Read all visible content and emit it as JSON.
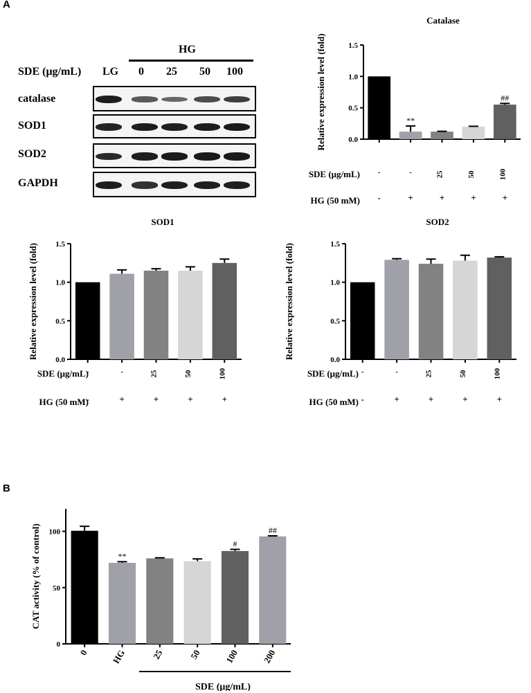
{
  "panels": {
    "a": "A",
    "b": "B"
  },
  "blot": {
    "sde_label": "SDE (μg/mL)",
    "hg_label": "HG",
    "lanes": [
      "LG",
      "0",
      "25",
      "50",
      "100"
    ],
    "rows": [
      {
        "name": "catalase",
        "intensities": [
          0.9,
          0.45,
          0.35,
          0.55,
          0.65
        ]
      },
      {
        "name": "SOD1",
        "intensities": [
          0.85,
          0.9,
          0.88,
          0.9,
          0.92
        ]
      },
      {
        "name": "SOD2",
        "intensities": [
          0.8,
          0.88,
          0.92,
          0.92,
          0.92
        ]
      },
      {
        "name": "GAPDH",
        "intensities": [
          0.9,
          0.75,
          0.88,
          0.88,
          0.88
        ]
      }
    ]
  },
  "chart_data": [
    {
      "type": "bar",
      "title": "Catalase",
      "ylabel": "Relative expression level (fold)",
      "ylim": [
        0,
        1.5
      ],
      "yticks": [
        "0.0",
        "0.5",
        "1.0",
        "1.5"
      ],
      "values": [
        1.0,
        0.12,
        0.12,
        0.2,
        0.55
      ],
      "errors": [
        0,
        0.09,
        0.005,
        0.005,
        0.02
      ],
      "annotations": [
        "",
        "**",
        "",
        "",
        "##"
      ],
      "colors": [
        "#000000",
        "#a0a0a8",
        "#828282",
        "#d6d6d6",
        "#606060"
      ],
      "row_labels": [
        "SDE (μg/mL)",
        "HG (50 mM)"
      ],
      "sde_row": [
        "-",
        "-",
        "25",
        "50",
        "100"
      ],
      "hg_row": [
        "-",
        "+",
        "+",
        "+",
        "+"
      ]
    },
    {
      "type": "bar",
      "title": "SOD1",
      "ylabel": "Relative expression level (fold)",
      "ylim": [
        0,
        1.5
      ],
      "yticks": [
        "0.0",
        "0.5",
        "1.0",
        "1.5"
      ],
      "values": [
        1.0,
        1.11,
        1.15,
        1.15,
        1.25
      ],
      "errors": [
        0,
        0.05,
        0.025,
        0.05,
        0.05
      ],
      "annotations": [
        "",
        "",
        "",
        "",
        ""
      ],
      "colors": [
        "#000000",
        "#a0a0a8",
        "#828282",
        "#d6d6d6",
        "#606060"
      ],
      "row_labels": [
        "SDE (μg/mL)",
        "HG (50 mM)"
      ],
      "sde_row": [
        "-",
        "-",
        "25",
        "50",
        "100"
      ],
      "hg_row": [
        "-",
        "+",
        "+",
        "+",
        "+"
      ]
    },
    {
      "type": "bar",
      "title": "SOD2",
      "ylabel": "Relative expression level (fold)",
      "ylim": [
        0,
        1.5
      ],
      "yticks": [
        "0.0",
        "0.5",
        "1.0",
        "1.5"
      ],
      "values": [
        1.0,
        1.29,
        1.24,
        1.28,
        1.32
      ],
      "errors": [
        0,
        0.015,
        0.06,
        0.07,
        0.01
      ],
      "annotations": [
        "",
        "",
        "",
        "",
        ""
      ],
      "colors": [
        "#000000",
        "#a0a0a8",
        "#828282",
        "#d6d6d6",
        "#606060"
      ],
      "row_labels": [
        "SDE (μg/mL)",
        "HG (50 mM)"
      ],
      "sde_row": [
        "-",
        "-",
        "25",
        "50",
        "100"
      ],
      "hg_row": [
        "-",
        "+",
        "+",
        "+",
        "+"
      ]
    },
    {
      "type": "bar",
      "ylabel": "CAT activity (% of control)",
      "ylim": [
        0,
        120
      ],
      "yticks": [
        "0",
        "50",
        "100"
      ],
      "ytick_values": [
        0,
        50,
        100
      ],
      "categories": [
        "0",
        "HG",
        "25",
        "50",
        "100",
        "200"
      ],
      "values": [
        100.5,
        72,
        76,
        73.5,
        82.5,
        95.5
      ],
      "errors": [
        4,
        1,
        0.5,
        2,
        1.5,
        0.5
      ],
      "annotations": [
        "",
        "**",
        "",
        "",
        "#",
        "##"
      ],
      "colors": [
        "#000000",
        "#a0a0a8",
        "#828282",
        "#d6d6d6",
        "#606060",
        "#a0a0a8"
      ],
      "group_label": "SDE (μg/mL)"
    }
  ]
}
